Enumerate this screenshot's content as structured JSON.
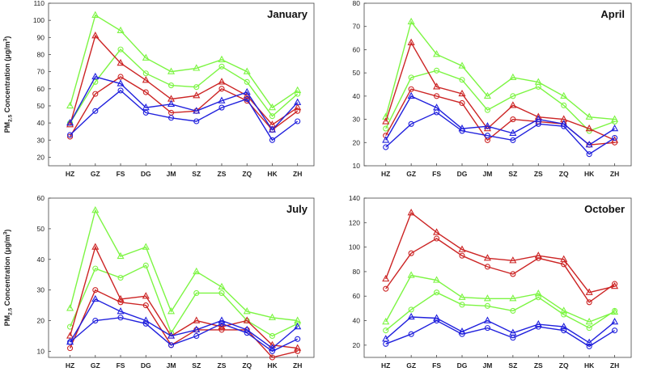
{
  "colors": {
    "green": "#7cf542",
    "red": "#cc2424",
    "blue": "#2020dd"
  },
  "chart_data": [
    {
      "type": "line",
      "title": "January",
      "ylabel": "PM2.5 Concentration (μg/m3)",
      "ylabel_parts": {
        "pre": "PM",
        "sub": "2.5",
        "mid": " Concentration (μg/m",
        "sup": "3",
        "post": ")"
      },
      "categories": [
        "HZ",
        "GZ",
        "FS",
        "DG",
        "JM",
        "SZ",
        "ZS",
        "ZQ",
        "HK",
        "ZH"
      ],
      "ylim": [
        15,
        110
      ],
      "yticks": [
        20,
        30,
        40,
        50,
        60,
        70,
        80,
        90,
        100,
        110
      ],
      "grid": false,
      "series": [
        {
          "color": "green",
          "marker": "triangle",
          "values": [
            50,
            103,
            94,
            78,
            70,
            72,
            77,
            70,
            49,
            59
          ]
        },
        {
          "color": "green",
          "marker": "circle",
          "values": [
            40,
            64,
            83,
            69,
            62,
            61,
            73,
            64,
            44,
            57
          ]
        },
        {
          "color": "red",
          "marker": "triangle",
          "values": [
            39,
            91,
            75,
            65,
            54,
            56,
            64,
            56,
            39,
            49
          ]
        },
        {
          "color": "red",
          "marker": "circle",
          "values": [
            32,
            57,
            67,
            58,
            46,
            47,
            60,
            53,
            36,
            47
          ]
        },
        {
          "color": "blue",
          "marker": "triangle",
          "values": [
            40,
            67,
            63,
            49,
            51,
            47,
            53,
            58,
            36,
            52
          ]
        },
        {
          "color": "blue",
          "marker": "circle",
          "values": [
            33,
            47,
            59,
            46,
            43,
            41,
            49,
            54,
            30,
            41
          ]
        }
      ]
    },
    {
      "type": "line",
      "title": "April",
      "categories": [
        "HZ",
        "GZ",
        "FS",
        "DG",
        "JM",
        "SZ",
        "ZS",
        "ZQ",
        "HK",
        "ZH"
      ],
      "ylim": [
        10,
        80
      ],
      "yticks": [
        10,
        20,
        30,
        40,
        50,
        60,
        70,
        80
      ],
      "grid": false,
      "series": [
        {
          "color": "green",
          "marker": "triangle",
          "values": [
            31,
            72,
            58,
            53,
            40,
            48,
            46,
            40,
            31,
            30
          ]
        },
        {
          "color": "green",
          "marker": "circle",
          "values": [
            26,
            48,
            51,
            47,
            34,
            40,
            44,
            36,
            25,
            29
          ]
        },
        {
          "color": "red",
          "marker": "triangle",
          "values": [
            29,
            63,
            44,
            41,
            26,
            36,
            31,
            30,
            26,
            21
          ]
        },
        {
          "color": "red",
          "marker": "circle",
          "values": [
            23,
            43,
            40,
            37,
            21,
            30,
            29,
            28,
            19,
            20
          ]
        },
        {
          "color": "blue",
          "marker": "triangle",
          "values": [
            21,
            40,
            35,
            26,
            27,
            24,
            30,
            28,
            19,
            26
          ]
        },
        {
          "color": "blue",
          "marker": "circle",
          "values": [
            18,
            28,
            33,
            25,
            23,
            21,
            28,
            27,
            15,
            22
          ]
        }
      ]
    },
    {
      "type": "line",
      "title": "July",
      "ylabel": "PM2.5 Concentration (μg/m3)",
      "ylabel_parts": {
        "pre": "PM",
        "sub": "2.5",
        "mid": " Concentration (μg/m",
        "sup": "3",
        "post": ")"
      },
      "categories": [
        "HZ",
        "GZ",
        "FS",
        "DG",
        "JM",
        "SZ",
        "ZS",
        "ZQ",
        "HK",
        "ZH"
      ],
      "ylim": [
        8,
        60
      ],
      "yticks": [
        10,
        20,
        30,
        40,
        50,
        60
      ],
      "grid": false,
      "series": [
        {
          "color": "green",
          "marker": "triangle",
          "values": [
            24,
            56,
            41,
            44,
            23,
            36,
            31,
            23,
            21,
            20
          ]
        },
        {
          "color": "green",
          "marker": "circle",
          "values": [
            18,
            37,
            34,
            38,
            16,
            29,
            29,
            20,
            15,
            19
          ]
        },
        {
          "color": "red",
          "marker": "triangle",
          "values": [
            15,
            44,
            27,
            28,
            15,
            20,
            18,
            20,
            12,
            11
          ]
        },
        {
          "color": "red",
          "marker": "circle",
          "values": [
            11,
            30,
            26,
            25,
            12,
            17,
            17,
            17,
            8,
            10
          ]
        },
        {
          "color": "blue",
          "marker": "triangle",
          "values": [
            13,
            27,
            23,
            20,
            15,
            17,
            20,
            17,
            11,
            18
          ]
        },
        {
          "color": "blue",
          "marker": "circle",
          "values": [
            13,
            20,
            21,
            19,
            12,
            15,
            19,
            16,
            10,
            14
          ]
        }
      ]
    },
    {
      "type": "line",
      "title": "October",
      "categories": [
        "HZ",
        "GZ",
        "FS",
        "DG",
        "JM",
        "SZ",
        "ZS",
        "ZQ",
        "HK",
        "ZH"
      ],
      "ylim": [
        10,
        140
      ],
      "yticks": [
        20,
        40,
        60,
        80,
        100,
        120,
        140
      ],
      "grid": false,
      "series": [
        {
          "color": "red",
          "marker": "triangle",
          "values": [
            74,
            128,
            112,
            98,
            91,
            89,
            93,
            90,
            63,
            68
          ]
        },
        {
          "color": "red",
          "marker": "circle",
          "values": [
            66,
            95,
            107,
            93,
            84,
            78,
            91,
            86,
            55,
            70
          ]
        },
        {
          "color": "green",
          "marker": "triangle",
          "values": [
            39,
            77,
            73,
            59,
            58,
            58,
            62,
            48,
            39,
            47
          ]
        },
        {
          "color": "green",
          "marker": "circle",
          "values": [
            32,
            49,
            63,
            53,
            52,
            48,
            59,
            45,
            34,
            48
          ]
        },
        {
          "color": "blue",
          "marker": "triangle",
          "values": [
            25,
            43,
            42,
            31,
            40,
            30,
            37,
            35,
            22,
            39
          ]
        },
        {
          "color": "blue",
          "marker": "circle",
          "values": [
            21,
            29,
            40,
            29,
            34,
            26,
            35,
            32,
            19,
            32
          ]
        }
      ]
    }
  ]
}
